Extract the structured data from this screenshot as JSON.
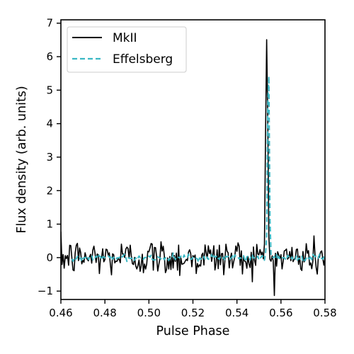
{
  "chart_data": {
    "type": "line",
    "xlabel": "Pulse Phase",
    "ylabel": "Flux density (arb. units)",
    "xlim": [
      0.46,
      0.58
    ],
    "ylim": [
      -1.25,
      7.1
    ],
    "xticks": [
      0.46,
      0.48,
      0.5,
      0.52,
      0.54,
      0.56,
      0.58
    ],
    "xtick_labels": [
      "0.46",
      "0.48",
      "0.50",
      "0.52",
      "0.54",
      "0.56",
      "0.58"
    ],
    "yticks": [
      -1,
      0,
      1,
      2,
      3,
      4,
      5,
      6,
      7
    ],
    "ytick_labels": [
      "−1",
      "0",
      "1",
      "2",
      "3",
      "4",
      "5",
      "6",
      "7"
    ],
    "grid": false,
    "legend": {
      "position": "top-left"
    },
    "series": [
      {
        "name": "MkII",
        "color": "#000000",
        "style": "solid",
        "noise_std": 0.28,
        "noise_x_range": [
          0.46,
          0.58
        ],
        "peak": {
          "center": 0.5535,
          "amplitude": 6.7,
          "sigma": 0.00045
        },
        "baseline": 0.0
      },
      {
        "name": "Effelsberg",
        "color": "#3bb8c4",
        "style": "dashed",
        "noise_std": 0.05,
        "noise_x_range": [
          0.465,
          0.58
        ],
        "peak": {
          "center": 0.5543,
          "amplitude": 6.2,
          "sigma": 0.00038
        },
        "baseline": 0.0
      }
    ]
  }
}
